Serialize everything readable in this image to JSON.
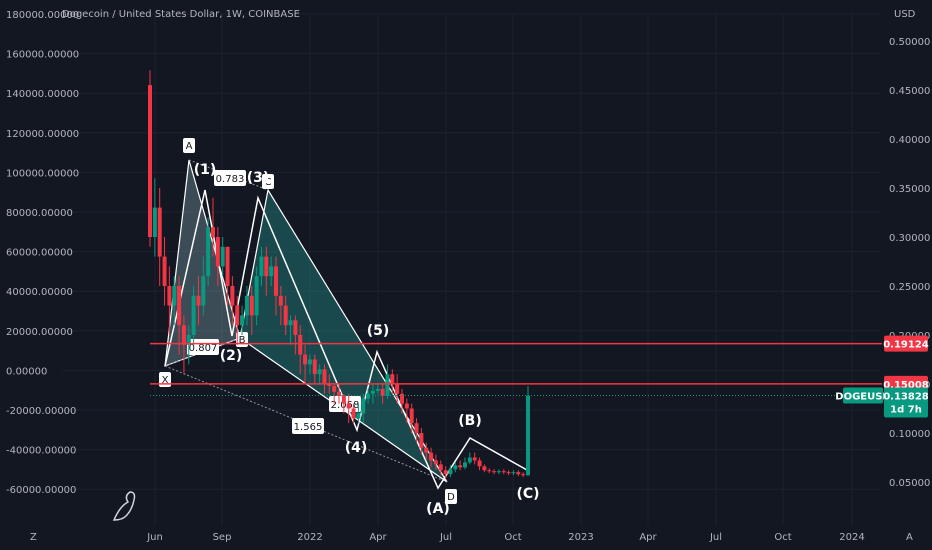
{
  "header": {
    "title": "Dogecoin / United States Dollar, 1W, COINBASE",
    "currency": "USD"
  },
  "chart_data": {
    "type": "candlestick",
    "title": "Dogecoin / United States Dollar, 1W, COINBASE",
    "left_axis_ticks": [
      "180000.00000",
      "160000.00000",
      "140000.00000",
      "120000.00000",
      "100000.00000",
      "80000.00000",
      "60000.00000",
      "40000.00000",
      "20000.00000",
      "0.00000",
      "-20000.00000",
      "-40000.00000",
      "-60000.00000"
    ],
    "right_axis_ticks": [
      "0.50000",
      "0.45000",
      "0.40000",
      "0.35000",
      "0.30000",
      "0.25000",
      "0.20000",
      "0.15000",
      "0.10000",
      "0.05000"
    ],
    "x_ticks": [
      "Jun",
      "Sep",
      "2022",
      "Apr",
      "Jul",
      "Oct",
      "2023",
      "Apr",
      "Jul",
      "Oct",
      "2024"
    ],
    "ylim": [
      0.02,
      0.52
    ],
    "candles": [
      [
        0.455,
        0.3,
        0.47,
        0.29
      ],
      [
        0.3,
        0.33,
        0.36,
        0.28
      ],
      [
        0.33,
        0.28,
        0.35,
        0.25
      ],
      [
        0.28,
        0.25,
        0.3,
        0.23
      ],
      [
        0.25,
        0.23,
        0.27,
        0.2
      ],
      [
        0.23,
        0.25,
        0.26,
        0.21
      ],
      [
        0.25,
        0.21,
        0.26,
        0.18
      ],
      [
        0.21,
        0.19,
        0.22,
        0.16
      ],
      [
        0.19,
        0.2,
        0.21,
        0.17
      ],
      [
        0.2,
        0.24,
        0.25,
        0.19
      ],
      [
        0.24,
        0.23,
        0.26,
        0.21
      ],
      [
        0.23,
        0.26,
        0.28,
        0.22
      ],
      [
        0.26,
        0.31,
        0.32,
        0.25
      ],
      [
        0.31,
        0.3,
        0.34,
        0.28
      ],
      [
        0.3,
        0.27,
        0.31,
        0.25
      ],
      [
        0.27,
        0.29,
        0.3,
        0.26
      ],
      [
        0.29,
        0.25,
        0.29,
        0.23
      ],
      [
        0.25,
        0.23,
        0.26,
        0.21
      ],
      [
        0.23,
        0.21,
        0.24,
        0.19
      ],
      [
        0.21,
        0.22,
        0.23,
        0.2
      ],
      [
        0.22,
        0.24,
        0.25,
        0.21
      ],
      [
        0.24,
        0.22,
        0.25,
        0.2
      ],
      [
        0.22,
        0.26,
        0.27,
        0.21
      ],
      [
        0.26,
        0.28,
        0.29,
        0.25
      ],
      [
        0.28,
        0.26,
        0.29,
        0.24
      ],
      [
        0.26,
        0.27,
        0.28,
        0.25
      ],
      [
        0.27,
        0.24,
        0.28,
        0.22
      ],
      [
        0.24,
        0.23,
        0.25,
        0.21
      ],
      [
        0.23,
        0.21,
        0.24,
        0.2
      ],
      [
        0.21,
        0.215,
        0.22,
        0.19
      ],
      [
        0.215,
        0.2,
        0.22,
        0.18
      ],
      [
        0.2,
        0.18,
        0.21,
        0.16
      ],
      [
        0.18,
        0.17,
        0.19,
        0.15
      ],
      [
        0.17,
        0.175,
        0.18,
        0.16
      ],
      [
        0.175,
        0.16,
        0.18,
        0.15
      ],
      [
        0.16,
        0.165,
        0.17,
        0.15
      ],
      [
        0.165,
        0.15,
        0.17,
        0.14
      ],
      [
        0.15,
        0.148,
        0.16,
        0.14
      ],
      [
        0.148,
        0.142,
        0.15,
        0.13
      ],
      [
        0.142,
        0.138,
        0.15,
        0.13
      ],
      [
        0.138,
        0.13,
        0.14,
        0.12
      ],
      [
        0.13,
        0.125,
        0.14,
        0.11
      ],
      [
        0.125,
        0.115,
        0.13,
        0.11
      ],
      [
        0.115,
        0.12,
        0.13,
        0.11
      ],
      [
        0.12,
        0.135,
        0.14,
        0.11
      ],
      [
        0.135,
        0.14,
        0.145,
        0.13
      ],
      [
        0.14,
        0.143,
        0.15,
        0.13
      ],
      [
        0.143,
        0.145,
        0.15,
        0.14
      ],
      [
        0.145,
        0.138,
        0.15,
        0.13
      ],
      [
        0.138,
        0.16,
        0.17,
        0.135
      ],
      [
        0.16,
        0.15,
        0.165,
        0.14
      ],
      [
        0.15,
        0.14,
        0.16,
        0.13
      ],
      [
        0.14,
        0.13,
        0.145,
        0.12
      ],
      [
        0.13,
        0.125,
        0.135,
        0.11
      ],
      [
        0.125,
        0.11,
        0.13,
        0.1
      ],
      [
        0.11,
        0.1,
        0.115,
        0.09
      ],
      [
        0.1,
        0.085,
        0.105,
        0.078
      ],
      [
        0.085,
        0.08,
        0.09,
        0.072
      ],
      [
        0.08,
        0.072,
        0.085,
        0.065
      ],
      [
        0.072,
        0.068,
        0.078,
        0.062
      ],
      [
        0.068,
        0.062,
        0.072,
        0.057
      ],
      [
        0.062,
        0.058,
        0.066,
        0.053
      ],
      [
        0.058,
        0.063,
        0.067,
        0.055
      ],
      [
        0.063,
        0.067,
        0.07,
        0.06
      ],
      [
        0.067,
        0.065,
        0.072,
        0.062
      ],
      [
        0.065,
        0.07,
        0.075,
        0.063
      ],
      [
        0.07,
        0.075,
        0.08,
        0.068
      ],
      [
        0.075,
        0.072,
        0.08,
        0.068
      ],
      [
        0.072,
        0.066,
        0.075,
        0.062
      ],
      [
        0.066,
        0.062,
        0.068,
        0.06
      ],
      [
        0.062,
        0.061,
        0.064,
        0.059
      ],
      [
        0.061,
        0.06,
        0.063,
        0.058
      ],
      [
        0.06,
        0.061,
        0.063,
        0.058
      ],
      [
        0.061,
        0.06,
        0.063,
        0.058
      ],
      [
        0.06,
        0.059,
        0.062,
        0.057
      ],
      [
        0.059,
        0.06,
        0.062,
        0.057
      ],
      [
        0.06,
        0.058,
        0.062,
        0.056
      ],
      [
        0.058,
        0.057,
        0.06,
        0.055
      ],
      [
        0.057,
        0.138,
        0.148,
        0.056
      ]
    ],
    "harmonic_points": [
      "X",
      "A",
      "B",
      "C",
      "D"
    ],
    "harmonic_ratios": [
      "0.783",
      "0.807",
      "1.565",
      "2.058"
    ],
    "wave_labels": [
      "(1)",
      "(2)",
      "(3)",
      "(4)",
      "(5)",
      "(A)",
      "(B)",
      "(C)"
    ],
    "levels": [
      {
        "value": "0.19124",
        "color": "#f23645"
      },
      {
        "value": "0.15008",
        "color": "#f23645"
      }
    ],
    "current": {
      "symbol": "DOGEUSD",
      "price": "0.13828",
      "countdown": "1d 7h",
      "color": "#089981"
    }
  },
  "footer": {
    "left_icon": "Z",
    "right_icon": "A"
  }
}
